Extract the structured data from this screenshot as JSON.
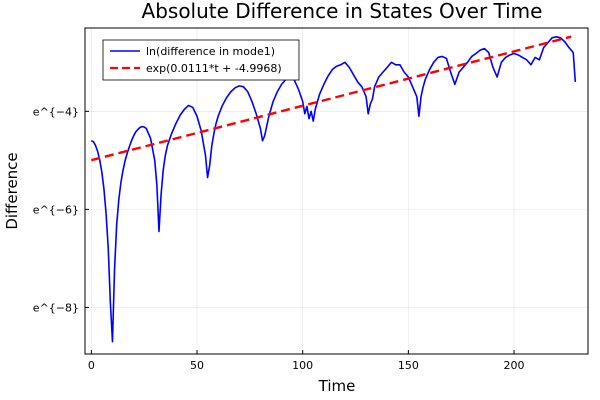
{
  "chart_data": {
    "type": "line",
    "title": "Absolute Difference in States Over Time",
    "xlabel": "Time",
    "ylabel": "Difference",
    "xlim": [
      -3,
      235
    ],
    "ylim": [
      -8.95,
      -2.3
    ],
    "x_ticks": [
      0,
      50,
      100,
      150,
      200
    ],
    "x_tick_labels": [
      "0",
      "50",
      "100",
      "150",
      "200"
    ],
    "y_ticks": [
      -8,
      -6,
      -4
    ],
    "y_tick_labels": [
      "e^{−8}",
      "e^{−6}",
      "e^{−4}"
    ],
    "grid": true,
    "legend_position": "top-left",
    "series": [
      {
        "name": "ln(difference in mode1)",
        "color": "#0000ff",
        "style": "solid",
        "x": [
          0,
          1,
          2,
          3,
          4,
          5,
          6,
          7,
          8,
          9,
          10,
          11,
          12,
          13,
          14,
          15,
          16,
          17,
          18,
          19,
          20,
          21,
          22,
          23,
          24,
          25,
          26,
          28,
          30,
          31,
          32,
          33,
          34,
          35,
          36,
          38,
          40,
          42,
          44,
          46,
          48,
          50,
          52,
          54,
          55,
          56,
          57,
          58,
          59,
          60,
          62,
          64,
          66,
          68,
          70,
          72,
          74,
          76,
          78,
          80,
          81,
          82,
          83,
          84,
          86,
          88,
          90,
          92,
          94,
          96,
          98,
          100,
          101,
          102,
          103,
          104,
          105,
          106,
          107,
          108,
          109,
          110,
          112,
          114,
          116,
          118,
          120,
          122,
          124,
          126,
          128,
          130,
          131,
          132,
          133,
          134,
          136,
          138,
          140,
          142,
          144,
          146,
          148,
          150,
          152,
          154,
          155,
          156,
          157,
          158,
          160,
          162,
          164,
          166,
          168,
          170,
          172,
          174,
          176,
          178,
          180,
          182,
          184,
          186,
          188,
          190,
          192,
          194,
          196,
          198,
          200,
          202,
          204,
          206,
          208,
          210,
          212,
          214,
          216,
          218,
          220,
          222,
          224,
          226,
          228,
          229
        ],
        "y": [
          -4.6,
          -4.62,
          -4.7,
          -4.82,
          -5,
          -5.25,
          -5.6,
          -6.1,
          -6.8,
          -7.9,
          -8.7,
          -7.2,
          -6.3,
          -5.8,
          -5.45,
          -5.2,
          -5.0,
          -4.85,
          -4.72,
          -4.6,
          -4.5,
          -4.42,
          -4.37,
          -4.33,
          -4.31,
          -4.32,
          -4.35,
          -4.55,
          -5.0,
          -5.5,
          -6.45,
          -5.7,
          -5.2,
          -4.9,
          -4.7,
          -4.45,
          -4.25,
          -4.08,
          -3.96,
          -3.88,
          -3.92,
          -4.1,
          -4.4,
          -4.9,
          -5.35,
          -5.1,
          -4.7,
          -4.45,
          -4.25,
          -4.1,
          -3.88,
          -3.72,
          -3.6,
          -3.52,
          -3.48,
          -3.5,
          -3.6,
          -3.8,
          -4.05,
          -4.35,
          -4.6,
          -4.5,
          -4.3,
          -4.1,
          -3.8,
          -3.6,
          -3.45,
          -3.35,
          -3.32,
          -3.36,
          -3.55,
          -3.8,
          -4.05,
          -3.9,
          -4.15,
          -4.0,
          -4.2,
          -3.95,
          -3.8,
          -3.65,
          -3.55,
          -3.45,
          -3.28,
          -3.15,
          -3.08,
          -3.05,
          -3.0,
          -3.1,
          -3.25,
          -3.4,
          -3.5,
          -3.7,
          -4.05,
          -3.85,
          -3.75,
          -3.5,
          -3.3,
          -3.2,
          -3.1,
          -3.0,
          -3.05,
          -3.05,
          -3.2,
          -3.3,
          -3.5,
          -3.7,
          -4.1,
          -3.7,
          -3.5,
          -3.35,
          -3.15,
          -3.0,
          -2.9,
          -2.88,
          -2.92,
          -3.2,
          -3.45,
          -3.2,
          -3.1,
          -3.0,
          -2.88,
          -2.82,
          -2.75,
          -2.72,
          -2.8,
          -3.1,
          -3.3,
          -3.0,
          -2.9,
          -2.85,
          -2.82,
          -2.85,
          -2.9,
          -2.95,
          -3.05,
          -2.9,
          -2.95,
          -2.7,
          -2.6,
          -2.5,
          -2.48,
          -2.5,
          -2.58,
          -2.7,
          -2.8,
          -3.4
        ]
      },
      {
        "name": "exp(0.0111*t + -4.9968)",
        "color": "#ff0000",
        "style": "dashed",
        "slope": 0.0111,
        "intercept": -4.9968,
        "x": [
          0,
          227
        ],
        "y": [
          -4.9968,
          -2.4771
        ]
      }
    ]
  }
}
